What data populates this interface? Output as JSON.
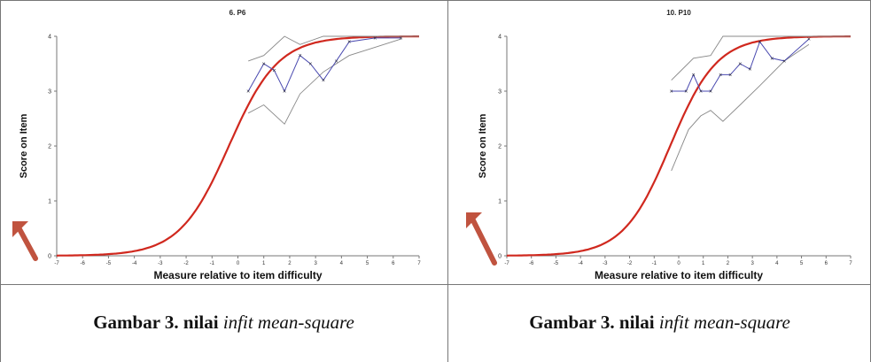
{
  "charts": [
    {
      "title": "6. P6",
      "ylabel": "Score on Item",
      "xlabel": "Measure relative to item difficulty",
      "caption_prefix": "Gambar 3. nilai ",
      "caption_italic": "infit mean-square"
    },
    {
      "title": "10. P10",
      "ylabel": "Score on Item",
      "xlabel": "Measure relative to item difficulty",
      "caption_prefix": "Gambar 3. nilai ",
      "caption_italic": "infit mean-square"
    }
  ],
  "colors": {
    "model_curve": "#d0281e",
    "observed": "#4a4ab0",
    "ci_band": "#888888",
    "arrow": "#c0533f"
  },
  "chart_data": [
    {
      "type": "line",
      "title": "6. P6",
      "xlabel": "Measure relative to item difficulty",
      "ylabel": "Score on Item",
      "xlim": [
        -7,
        7
      ],
      "ylim": [
        0,
        4
      ],
      "x_ticks": [
        "-7",
        "-6",
        "-5",
        "-4",
        "-3",
        "-2",
        "-1",
        "0",
        "1",
        "2",
        "3",
        "4",
        "5",
        "6",
        "7"
      ],
      "y_ticks": [
        "0",
        "1",
        "2",
        "3",
        "4"
      ],
      "series": [
        {
          "values": [
            [
              0.4,
              3.0
            ],
            [
              1.0,
              3.5
            ],
            [
              1.4,
              3.38
            ],
            [
              1.8,
              3.0
            ],
            [
              2.4,
              3.65
            ],
            [
              2.8,
              3.5
            ],
            [
              3.3,
              3.2
            ],
            [
              3.8,
              3.55
            ],
            [
              4.3,
              3.9
            ],
            [
              5.3,
              3.97
            ],
            [
              6.3,
              3.97
            ]
          ]
        }
      ],
      "ci_upper": [
        [
          0.4,
          3.55
        ],
        [
          1.0,
          3.65
        ],
        [
          1.8,
          4.0
        ],
        [
          2.4,
          3.85
        ],
        [
          3.3,
          4.0
        ],
        [
          7,
          4.0
        ]
      ],
      "ci_lower": [
        [
          0.4,
          2.6
        ],
        [
          1.0,
          2.75
        ],
        [
          1.8,
          2.4
        ],
        [
          2.4,
          2.95
        ],
        [
          3.3,
          3.35
        ],
        [
          4.3,
          3.65
        ],
        [
          5.3,
          3.8
        ],
        [
          6.3,
          3.95
        ]
      ]
    },
    {
      "type": "line",
      "title": "10. P10",
      "xlabel": "Measure relative to item difficulty",
      "ylabel": "Score on Item",
      "xlim": [
        -7,
        7
      ],
      "ylim": [
        0,
        4
      ],
      "x_ticks": [
        "-7",
        "-6",
        "-5",
        "-4",
        "-3",
        "-2",
        "-1",
        "0",
        "1",
        "2",
        "3",
        "4",
        "5",
        "6",
        "7"
      ],
      "y_ticks": [
        "0",
        "1",
        "2",
        "3",
        "4"
      ],
      "series": [
        {
          "values": [
            [
              -0.3,
              3.0
            ],
            [
              0.3,
              3.0
            ],
            [
              0.6,
              3.3
            ],
            [
              0.9,
              3.0
            ],
            [
              1.3,
              3.0
            ],
            [
              1.7,
              3.3
            ],
            [
              2.1,
              3.3
            ],
            [
              2.5,
              3.5
            ],
            [
              2.9,
              3.4
            ],
            [
              3.3,
              3.9
            ],
            [
              3.8,
              3.6
            ],
            [
              4.3,
              3.55
            ],
            [
              5.3,
              3.95
            ]
          ]
        }
      ],
      "ci_upper": [
        [
          -0.3,
          3.2
        ],
        [
          0.6,
          3.6
        ],
        [
          1.3,
          3.65
        ],
        [
          1.8,
          4.0
        ],
        [
          2.5,
          4.0
        ],
        [
          3.3,
          4.0
        ],
        [
          7,
          4.0
        ]
      ],
      "ci_lower": [
        [
          -0.3,
          1.55
        ],
        [
          0.4,
          2.3
        ],
        [
          0.9,
          2.55
        ],
        [
          1.3,
          2.65
        ],
        [
          1.8,
          2.45
        ],
        [
          2.5,
          2.75
        ],
        [
          3.3,
          3.1
        ],
        [
          4.3,
          3.55
        ],
        [
          5.3,
          3.85
        ]
      ]
    }
  ]
}
